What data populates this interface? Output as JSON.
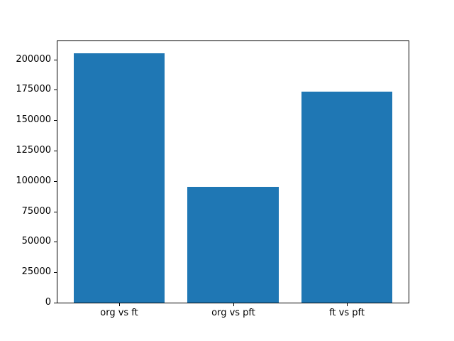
{
  "chart_data": {
    "type": "bar",
    "categories": [
      "org vs ft",
      "org vs pft",
      "ft vs pft"
    ],
    "values": [
      205000,
      95000,
      173500
    ],
    "title": "",
    "xlabel": "",
    "ylabel": "",
    "ylim": [
      0,
      215000
    ],
    "xlim": [
      -0.54,
      2.54
    ],
    "bar_width": 0.8,
    "yticks": [
      0,
      25000,
      50000,
      75000,
      100000,
      125000,
      150000,
      175000,
      200000
    ],
    "ytick_labels": [
      "0",
      "25000",
      "50000",
      "75000",
      "100000",
      "125000",
      "150000",
      "175000",
      "200000"
    ],
    "grid": false,
    "legend": null,
    "bar_color": "#1f77b4",
    "axis_color": "#000000",
    "text_color": "#000000",
    "background_color": "#ffffff"
  }
}
